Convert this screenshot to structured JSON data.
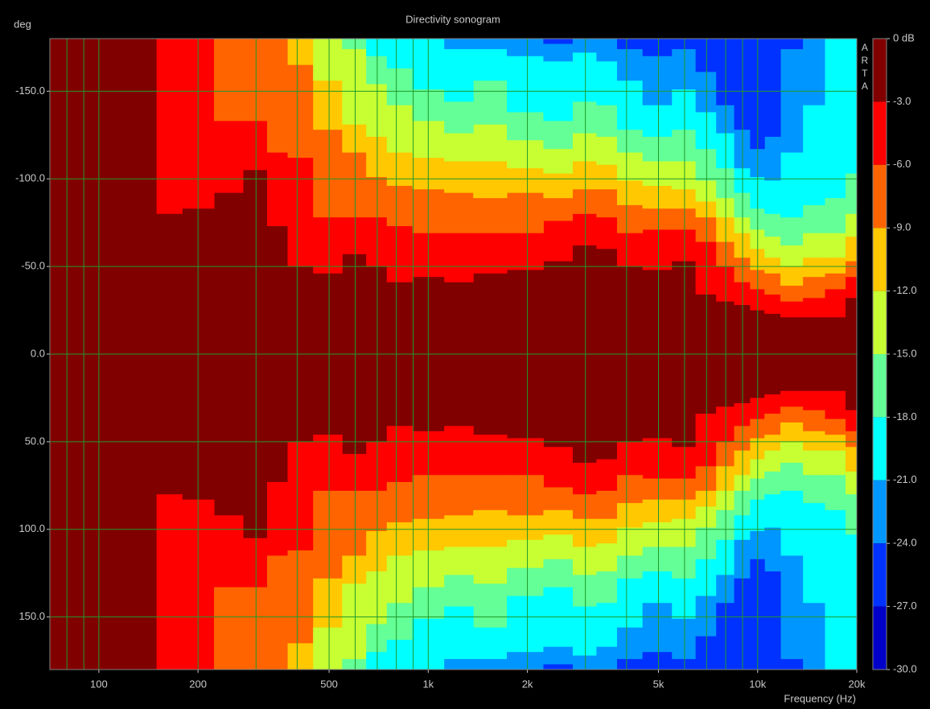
{
  "chart_data": {
    "type": "sonogram",
    "title": "Directivity sonogram",
    "y_label": "deg",
    "x_label": "Frequency (Hz)",
    "watermark": "ARTA",
    "x_scale": "log",
    "xlim": [
      71,
      20000
    ],
    "xticks": [
      100,
      200,
      500,
      {
        "value": 1000,
        "label": "1k"
      },
      {
        "value": 2000,
        "label": "2k"
      },
      {
        "value": 5000,
        "label": "5k"
      },
      {
        "value": 10000,
        "label": "10k"
      },
      {
        "value": 20000,
        "label": "20k"
      }
    ],
    "xgrid": [
      80,
      90,
      100,
      200,
      300,
      400,
      500,
      600,
      700,
      800,
      900,
      1000,
      2000,
      3000,
      4000,
      5000,
      6000,
      7000,
      8000,
      9000,
      10000,
      20000
    ],
    "ylim": [
      -180,
      180
    ],
    "yticks": [
      {
        "value": -150,
        "label": "-150.0"
      },
      {
        "value": -100,
        "label": "-100.0"
      },
      {
        "value": -50,
        "label": "-50.0"
      },
      {
        "value": 0,
        "label": "0.0"
      },
      {
        "value": 50,
        "label": "50.0"
      },
      {
        "value": 100,
        "label": "100.0"
      },
      {
        "value": 150,
        "label": "150.0"
      }
    ],
    "grid": true,
    "base_color": "#800000",
    "x": [
      71,
      140,
      160,
      200,
      250,
      300,
      350,
      400,
      500,
      600,
      700,
      800,
      1000,
      1250,
      1500,
      2000,
      2500,
      3000,
      3500,
      4000,
      5000,
      6000,
      7000,
      8000,
      9000,
      10000,
      11000,
      12500,
      15000,
      17000,
      20000
    ],
    "levels": [
      {
        "color": "#ff0000",
        "values": [
          180,
          180,
          80,
          83,
          92,
          105,
          73,
          50,
          46,
          57,
          50,
          41,
          44,
          41,
          46,
          48,
          53,
          62,
          60,
          50,
          48,
          53,
          34,
          30,
          28,
          25,
          23,
          21,
          21,
          21,
          32
        ]
      },
      {
        "color": "#ff6400",
        "values": [
          180,
          180,
          180,
          180,
          133,
          133,
          115,
          112,
          78,
          78,
          78,
          73,
          69,
          69,
          69,
          69,
          76,
          80,
          78,
          69,
          71,
          71,
          64,
          50,
          41,
          37,
          34,
          30,
          32,
          37,
          44
        ]
      },
      {
        "color": "#ffc800",
        "values": [
          180,
          180,
          180,
          180,
          180,
          180,
          180,
          165,
          128,
          115,
          101,
          96,
          94,
          92,
          89,
          92,
          89,
          94,
          94,
          85,
          83,
          83,
          78,
          64,
          55,
          48,
          46,
          39,
          44,
          46,
          53
        ]
      },
      {
        "color": "#c8ff32",
        "values": [
          180,
          180,
          180,
          180,
          180,
          180,
          180,
          180,
          156,
          131,
          124,
          115,
          112,
          110,
          110,
          106,
          103,
          110,
          108,
          99,
          96,
          94,
          87,
          78,
          69,
          60,
          55,
          50,
          55,
          55,
          67
        ]
      },
      {
        "color": "#64ff96",
        "values": [
          180,
          180,
          180,
          180,
          180,
          180,
          180,
          180,
          180,
          174,
          154,
          142,
          133,
          126,
          131,
          122,
          117,
          126,
          124,
          115,
          110,
          110,
          99,
          89,
          78,
          71,
          67,
          62,
          69,
          69,
          80
        ]
      },
      {
        "color": "#00ffff",
        "values": [
          180,
          180,
          180,
          180,
          180,
          180,
          180,
          180,
          180,
          180,
          170,
          163,
          151,
          144,
          156,
          138,
          133,
          144,
          142,
          128,
          124,
          128,
          117,
          106,
          92,
          83,
          80,
          78,
          85,
          89,
          103
        ]
      },
      {
        "color": "#0096ff",
        "values": [
          180,
          180,
          180,
          180,
          180,
          180,
          180,
          180,
          180,
          180,
          180,
          180,
          180,
          174,
          174,
          170,
          167,
          172,
          167,
          156,
          142,
          151,
          138,
          126,
          106,
          101,
          99,
          115,
          142,
          180,
          180
        ]
      },
      {
        "color": "#0032ff",
        "values": [
          180,
          180,
          180,
          180,
          180,
          180,
          180,
          180,
          180,
          180,
          180,
          180,
          180,
          180,
          180,
          180,
          177,
          180,
          180,
          174,
          170,
          174,
          161,
          142,
          128,
          117,
          124,
          174,
          180,
          180,
          180
        ]
      },
      {
        "color": "#0000c8",
        "values": [
          180,
          180,
          180,
          180,
          180,
          180,
          180,
          180,
          180,
          180,
          180,
          180,
          180,
          180,
          180,
          180,
          180,
          180,
          180,
          180,
          180,
          180,
          180,
          180,
          180,
          180,
          180,
          180,
          180,
          180,
          180
        ]
      }
    ],
    "colorbar": {
      "clim": [
        -30,
        0
      ],
      "ticks": [
        {
          "value": 0,
          "label": "0 dB"
        },
        {
          "value": -3,
          "label": "-3.0"
        },
        {
          "value": -6,
          "label": "-6.0"
        },
        {
          "value": -9,
          "label": "-9.0"
        },
        {
          "value": -12,
          "label": "-12.0"
        },
        {
          "value": -15,
          "label": "-15.0"
        },
        {
          "value": -18,
          "label": "-18.0"
        },
        {
          "value": -21,
          "label": "-21.0"
        },
        {
          "value": -24,
          "label": "-24.0"
        },
        {
          "value": -27,
          "label": "-27.0"
        },
        {
          "value": -30,
          "label": "-30.0"
        }
      ]
    }
  }
}
